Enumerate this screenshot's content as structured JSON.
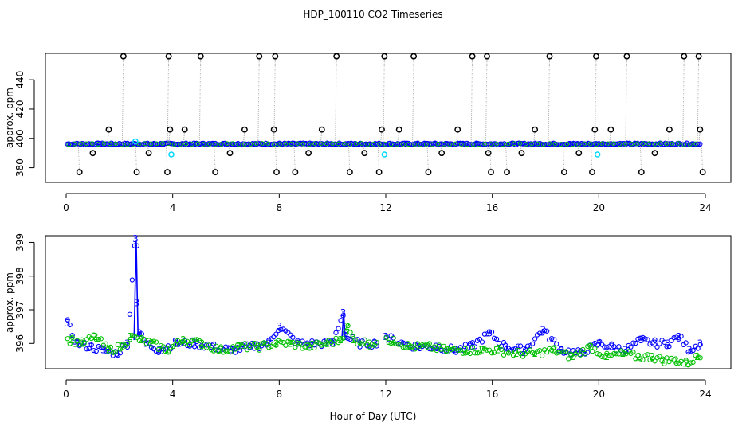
{
  "title": "HDP_100110  CO2 Timeseries",
  "xlabel": "Hour of Day (UTC)",
  "colors": {
    "open_circle": "#000000",
    "flagged": "#00d8ff",
    "series_blue": "#0000ff",
    "series_green": "#00c000",
    "drop_line": "#a0a0a0"
  },
  "chart_data": [
    {
      "type": "scatter",
      "panel": "top",
      "ylabel": "approx. ppm",
      "xlim": [
        0,
        24
      ],
      "ylim": [
        370,
        458
      ],
      "x_ticks": [
        "0",
        "4",
        "8",
        "12",
        "16",
        "20",
        "24"
      ],
      "y_ticks": [
        "380",
        "400",
        "420",
        "440"
      ],
      "series": [
        {
          "baseline": 396.2,
          "x_range": [
            0.05,
            23.85
          ]
        },
        {
          "x": [
            0.5,
            1.0,
            1.6,
            2.15,
            2.65,
            3.1,
            3.8,
            3.85,
            3.9,
            4.45,
            5.05,
            5.6,
            6.15,
            6.7,
            7.25,
            7.8,
            7.85,
            7.9,
            8.6,
            9.1,
            9.6,
            10.15,
            10.65,
            11.2,
            11.75,
            11.85,
            11.95,
            12.5,
            13.05,
            13.6,
            14.1,
            14.7,
            15.25,
            15.8,
            15.85,
            15.95,
            16.55,
            17.1,
            17.6,
            18.15,
            18.7,
            19.25,
            19.75,
            19.85,
            19.9,
            20.45,
            21.05,
            21.6,
            22.1,
            22.65,
            23.2,
            23.75,
            23.8,
            23.9
          ],
          "y": [
            377,
            390,
            406,
            456,
            377,
            390,
            377,
            456,
            406,
            406,
            456,
            377,
            390,
            406,
            456,
            406,
            456,
            377,
            377,
            390,
            406,
            456,
            377,
            390,
            377,
            406,
            456,
            406,
            456,
            377,
            390,
            406,
            456,
            456,
            390,
            377,
            377,
            390,
            406,
            456,
            377,
            390,
            377,
            406,
            456,
            406,
            456,
            377,
            390,
            406,
            456,
            456,
            406,
            377
          ]
        }
      ]
    },
    {
      "type": "line",
      "panel": "bottom",
      "ylabel": "approx. ppm",
      "xlim": [
        0,
        24
      ],
      "ylim": [
        395.25,
        399.2
      ],
      "x_ticks": [
        "0",
        "4",
        "8",
        "12",
        "16",
        "20",
        "24"
      ],
      "y_ticks": [
        "396",
        "397",
        "398",
        "399"
      ],
      "series": [
        {
          "marker": "3",
          "x": [
            0.05,
            0.4,
            0.9,
            1.4,
            1.9,
            2.3,
            2.6,
            2.65,
            2.75,
            3.0,
            3.5,
            4.1,
            4.8,
            5.5,
            6.2,
            6.9,
            7.6,
            8.0,
            8.7,
            9.4,
            10.0,
            10.4,
            10.5,
            11.0,
            11.6,
            12.0,
            12.6,
            13.2,
            13.9,
            14.6,
            15.2,
            15.9,
            16.5,
            17.2,
            17.9,
            18.6,
            19.3,
            20.0,
            20.5,
            21.0,
            21.6,
            22.1,
            22.6,
            23.0,
            23.4,
            23.8
          ],
          "y": [
            396.6,
            396.0,
            395.9,
            395.8,
            395.7,
            396.0,
            399.1,
            397.2,
            396.3,
            396.0,
            395.8,
            396.0,
            396.0,
            395.9,
            395.8,
            395.9,
            396.0,
            396.5,
            396.0,
            396.0,
            396.0,
            396.9,
            396.2,
            396.0,
            396.0,
            396.2,
            396.0,
            395.9,
            395.9,
            395.8,
            395.9,
            396.3,
            395.9,
            395.8,
            396.4,
            395.8,
            395.7,
            396.0,
            395.9,
            395.8,
            396.1,
            396.0,
            396.0,
            396.2,
            395.8,
            396.0
          ]
        },
        {
          "marker": "2",
          "x": [
            0.2,
            0.6,
            1.1,
            1.6,
            2.1,
            2.4,
            2.8,
            3.2,
            3.8,
            4.4,
            5.1,
            5.8,
            6.5,
            7.2,
            7.9,
            8.4,
            9.1,
            9.8,
            10.3,
            10.55,
            10.8,
            11.4,
            12.3,
            12.9,
            13.6,
            14.3,
            15.0,
            15.6,
            16.2,
            16.9,
            17.6,
            18.3,
            19.0,
            19.7,
            20.3,
            20.9,
            21.5,
            22.0,
            22.4,
            22.9,
            23.3,
            23.7
          ],
          "y": [
            396.1,
            396.0,
            396.2,
            395.8,
            395.9,
            396.2,
            396.1,
            396.0,
            395.8,
            396.1,
            396.0,
            395.8,
            395.9,
            395.9,
            396.0,
            396.0,
            395.9,
            396.0,
            396.1,
            396.5,
            396.1,
            396.0,
            396.1,
            395.9,
            395.9,
            395.8,
            395.8,
            395.8,
            395.8,
            395.7,
            395.7,
            395.8,
            395.6,
            395.9,
            395.6,
            395.7,
            395.6,
            395.6,
            395.5,
            395.5,
            395.4,
            395.6
          ]
        }
      ]
    }
  ]
}
